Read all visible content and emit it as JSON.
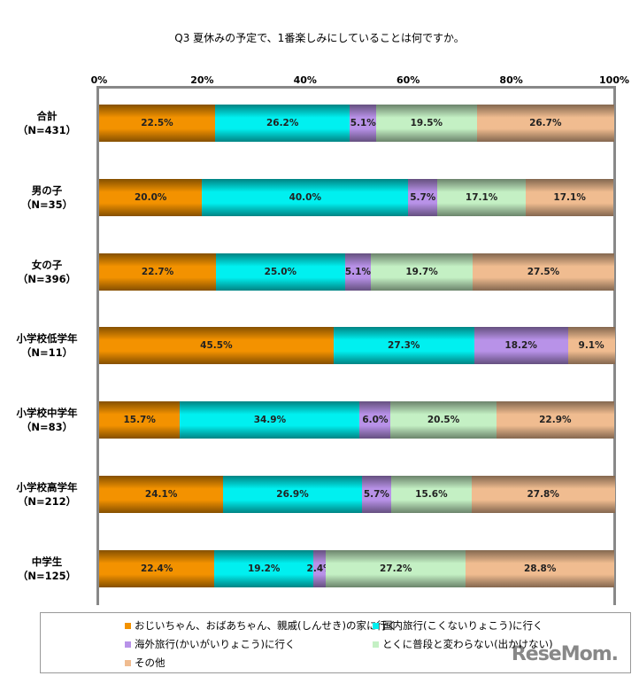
{
  "chart_data": {
    "type": "bar",
    "orientation": "horizontal-stacked-100",
    "title": "Q3 夏休みの予定で、1番楽しみにしていることは何ですか。",
    "xticks": [
      "0%",
      "20%",
      "40%",
      "60%",
      "80%",
      "100%"
    ],
    "xlim": [
      0,
      100
    ],
    "categories": [
      [
        "合計",
        "（N=431）"
      ],
      [
        "男の子",
        "（N=35）"
      ],
      [
        "女の子",
        "（N=396）"
      ],
      [
        "小学校低学年",
        "（N=11）"
      ],
      [
        "小学校中学年",
        "（N=83）"
      ],
      [
        "小学校高学年",
        "（N=212）"
      ],
      [
        "中学生",
        "（N=125）"
      ]
    ],
    "series": [
      {
        "name": "おじいちゃん、おばあちゃん、親戚(しんせき)の家に行く",
        "color": "#f39200",
        "values": [
          22.5,
          20.0,
          22.7,
          45.5,
          15.7,
          24.1,
          22.4
        ]
      },
      {
        "name": "国内旅行(こくないりょこう)に行く",
        "color": "#00f0f0",
        "values": [
          26.2,
          40.0,
          25.0,
          27.3,
          34.9,
          26.9,
          19.2
        ]
      },
      {
        "name": "海外旅行(かいがいりょこう)に行く",
        "color": "#b892e8",
        "values": [
          5.1,
          5.7,
          5.1,
          18.2,
          6.0,
          5.7,
          2.4
        ]
      },
      {
        "name": "とくに普段と変わらない(出かけない)",
        "color": "#c4f0c4",
        "values": [
          19.5,
          17.1,
          19.7,
          0,
          20.5,
          15.6,
          27.2
        ]
      },
      {
        "name": "その他",
        "color": "#f0bc90",
        "values": [
          26.7,
          17.1,
          27.5,
          9.1,
          22.9,
          27.8,
          28.8
        ]
      }
    ]
  },
  "logo": "ReseMom"
}
